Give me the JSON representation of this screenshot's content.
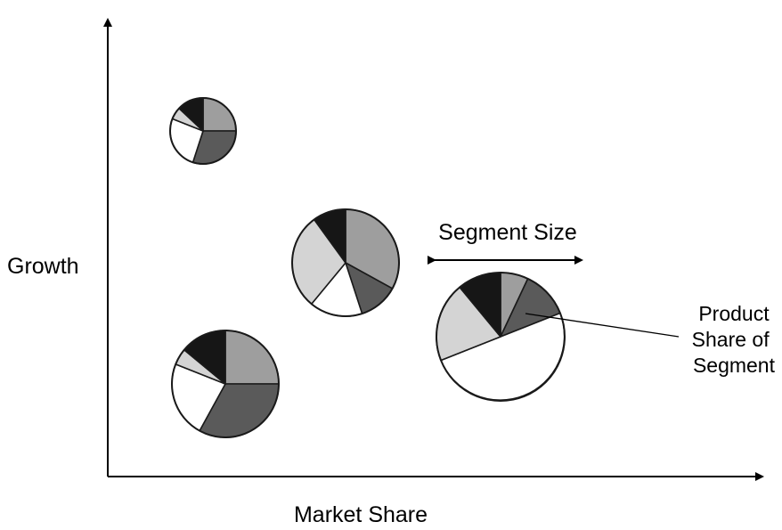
{
  "diagram": {
    "y_axis_label": "Growth",
    "x_axis_label": "Market Share",
    "segment_size_label": "Segment Size",
    "callout_lines": [
      "Product",
      "Share of",
      "Segment"
    ]
  },
  "colors": {
    "light_gray": "#d4d4d4",
    "mid_gray": "#9e9e9e",
    "dark_gray": "#5a5a5a",
    "black": "#161616",
    "white": "#ffffff",
    "outline": "#1a1a1a"
  },
  "pies": [
    {
      "name": "pie-top-left",
      "slices": [
        {
          "share": 0.25,
          "color": "mid_gray"
        },
        {
          "share": 0.3,
          "color": "dark_gray"
        },
        {
          "share": 0.26,
          "color": "white"
        },
        {
          "share": 0.06,
          "color": "light_gray"
        },
        {
          "share": 0.13,
          "color": "black"
        }
      ]
    },
    {
      "name": "pie-center",
      "slices": [
        {
          "share": 0.33,
          "color": "mid_gray"
        },
        {
          "share": 0.12,
          "color": "dark_gray"
        },
        {
          "share": 0.16,
          "color": "white"
        },
        {
          "share": 0.29,
          "color": "light_gray"
        },
        {
          "share": 0.1,
          "color": "black"
        }
      ]
    },
    {
      "name": "pie-bottom-left",
      "slices": [
        {
          "share": 0.25,
          "color": "mid_gray"
        },
        {
          "share": 0.33,
          "color": "dark_gray"
        },
        {
          "share": 0.23,
          "color": "white"
        },
        {
          "share": 0.05,
          "color": "light_gray"
        },
        {
          "share": 0.14,
          "color": "black"
        }
      ]
    },
    {
      "name": "pie-right",
      "slices": [
        {
          "share": 0.07,
          "color": "mid_gray"
        },
        {
          "share": 0.12,
          "color": "dark_gray"
        },
        {
          "share": 0.5,
          "color": "white"
        },
        {
          "share": 0.2,
          "color": "light_gray"
        },
        {
          "share": 0.11,
          "color": "black"
        }
      ]
    }
  ]
}
